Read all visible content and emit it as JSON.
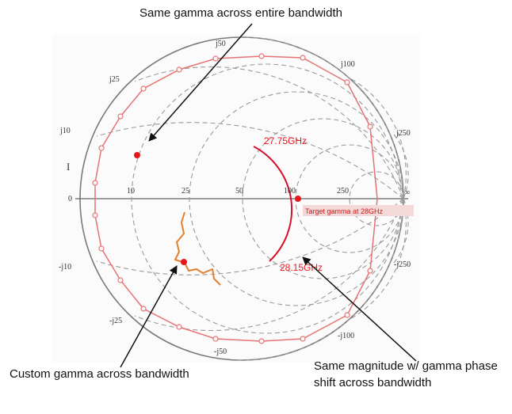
{
  "callouts": {
    "top": "Same gamma  across entire bandwidth",
    "bottom_left": "Custom gamma  across bandwidth",
    "bottom_right": "Same magnitude w/ gamma phase shift across bandwidth"
  },
  "smith_chart": {
    "resistance_labels": [
      "0",
      "10",
      "25",
      "50",
      "100",
      "250",
      "∞"
    ],
    "reactance_labels_upper": [
      "j10",
      "j25",
      "j50",
      "j100",
      "j250"
    ],
    "reactance_labels_lower": [
      "-j10",
      "-j25",
      "-j50",
      "-j100",
      "-j250"
    ],
    "marker_label": "I",
    "freq_start": "27.75GHz",
    "freq_end": "28.15GHz",
    "target_label": "Target gamma at 28GHz"
  },
  "colors": {
    "outer_polygon": "#e57373",
    "arc": "#d6102c",
    "custom_trace": "#e2802e",
    "dot": "#e8161c",
    "grid": "#9a9a9a"
  }
}
